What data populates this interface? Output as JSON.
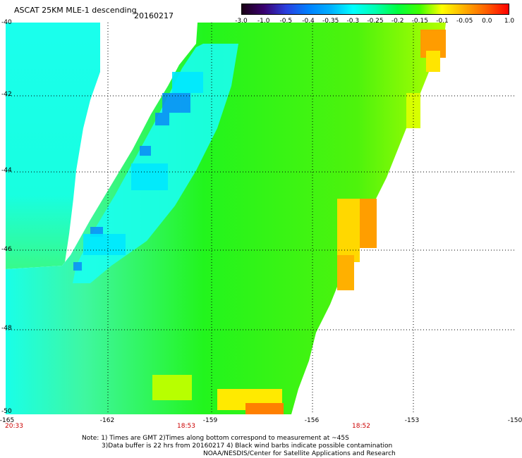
{
  "header": {
    "title": "ASCAT 25KM MLE-1 descending",
    "date": "20160217"
  },
  "scale": {
    "labels": [
      "-3.0",
      "-1.0",
      "-0.5",
      "-0.4",
      "-0.35",
      "-0.3",
      "-0.25",
      "-0.2",
      "-0.15",
      "-0.1",
      "-0.05",
      "0.0",
      "1.0"
    ],
    "colors": [
      "#1a0015",
      "#3a0070",
      "#2a40e0",
      "#0080ff",
      "#00b0ff",
      "#00ffff",
      "#00ffb0",
      "#00ff40",
      "#40ff00",
      "#ffff00",
      "#ffb000",
      "#ff6000",
      "#ff0000"
    ]
  },
  "axes": {
    "lat_labels": [
      "-40",
      "-42",
      "-44",
      "-46",
      "-48",
      "-50"
    ],
    "lon_labels": [
      "-165",
      "-162",
      "-159",
      "-156",
      "-153",
      "-150"
    ]
  },
  "times": [
    "20:33",
    "18:53",
    "18:52"
  ],
  "notes": [
    "Note: 1) Times are GMT 2)Times along bottom correspond to measurement at ~45S",
    "3)Data buffer is 22 hrs from 20160217 4) Black wind barbs indicate possible contamination",
    "NOAA/NESDIS/Center for Satellite Applications and Research"
  ]
}
